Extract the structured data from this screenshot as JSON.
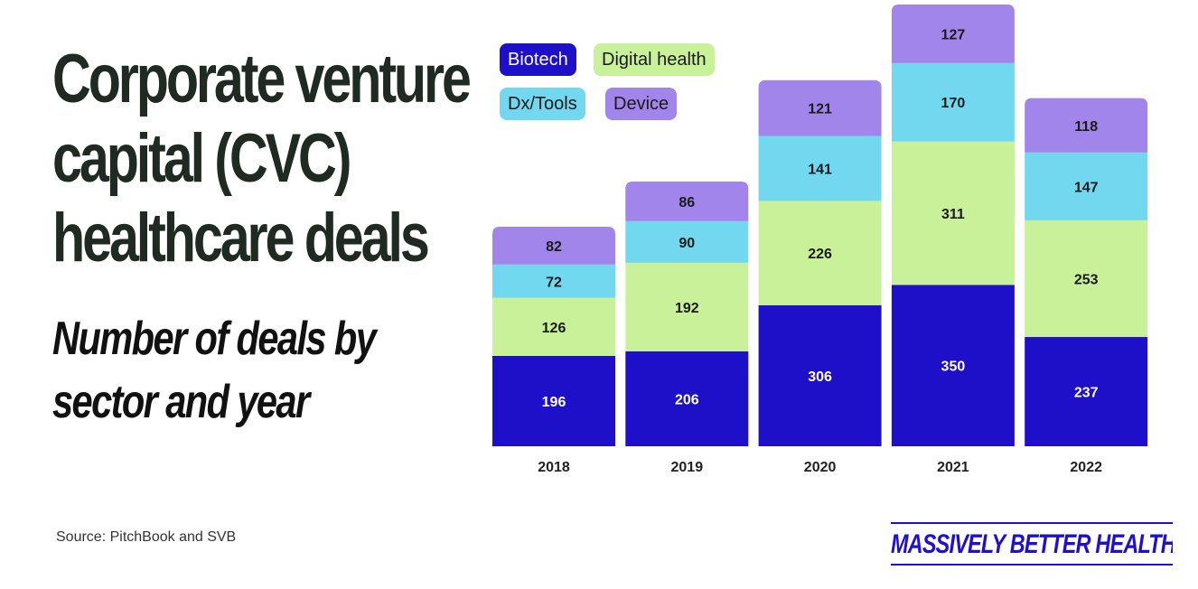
{
  "header": {
    "title_lines": [
      "Corporate venture",
      "capital (CVC)",
      "healthcare deals"
    ],
    "subtitle_lines": [
      "Number of deals by",
      "sector and year"
    ]
  },
  "footer": {
    "source": "Source: PitchBook and SVB",
    "brand": "MASSIVELY BETTER HEALTHCARE"
  },
  "legend": [
    {
      "label": "Biotech",
      "color": "#1e0fc9",
      "text_color": "#ffffff"
    },
    {
      "label": "Digital health",
      "color": "#c9f199",
      "text_color": "#1a1a1a"
    },
    {
      "label": "Dx/Tools",
      "color": "#72d8ef",
      "text_color": "#1a1a1a"
    },
    {
      "label": "Device",
      "color": "#a285ea",
      "text_color": "#1a1a1a"
    }
  ],
  "chart_data": {
    "type": "bar",
    "stacked": true,
    "title": "Corporate venture capital (CVC) healthcare deals",
    "subtitle": "Number of deals by sector and year",
    "categories": [
      "2018",
      "2019",
      "2020",
      "2021",
      "2022"
    ],
    "series": [
      {
        "name": "Biotech",
        "values": [
          196,
          206,
          306,
          350,
          237
        ],
        "color": "#1e0fc9"
      },
      {
        "name": "Digital health",
        "values": [
          126,
          192,
          226,
          311,
          253
        ],
        "color": "#c9f199"
      },
      {
        "name": "Dx/Tools",
        "values": [
          72,
          90,
          141,
          170,
          147
        ],
        "color": "#72d8ef"
      },
      {
        "name": "Device",
        "values": [
          82,
          86,
          121,
          127,
          118
        ],
        "color": "#a285ea"
      }
    ],
    "xlabel": "",
    "ylabel": "",
    "grid": false,
    "legend_position": "top-left"
  }
}
